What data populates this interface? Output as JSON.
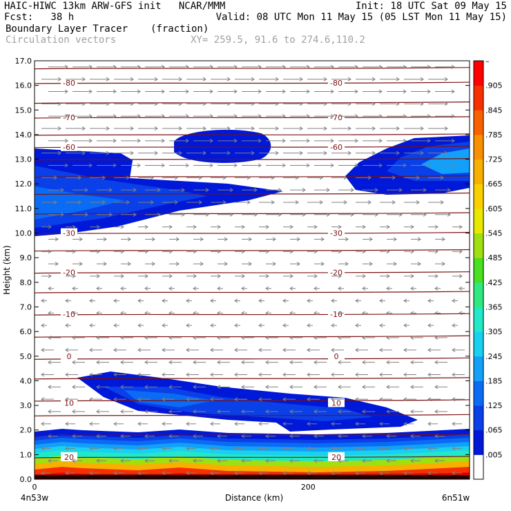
{
  "header": {
    "line1_left": "HAIC-HIWC 13km ARW-GFS init   NCAR/MMM",
    "line1_right": "Init: 18 UTC Sat 09 May 15",
    "line2_left": "Fcst:   38 h",
    "line2_right": "Valid: 08 UTC Mon 11 May 15 (05 LST Mon 11 May 15)",
    "field_name": "Boundary Layer Tracer",
    "field_unit": "(fraction)",
    "overlay_name": "Circulation vectors",
    "xy_label": "XY= 259.5, 91.6 to 274.6,110.2"
  },
  "colors": {
    "contour_line": "#7a1010",
    "vector": "#808080"
  },
  "chart_data": {
    "type": "heatmap",
    "title": "Boundary Layer Tracer",
    "ylabel": "Height (km)",
    "xlabel": "Distance (km)",
    "ylim": [
      0,
      17
    ],
    "xlim": [
      0,
      318
    ],
    "y_ticks": [
      "0.0",
      "1.0",
      "2.0",
      "3.0",
      "4.0",
      "5.0",
      "6.0",
      "7.0",
      "8.0",
      "9.0",
      "10.0",
      "11.0",
      "12.0",
      "13.0",
      "14.0",
      "15.0",
      "16.0",
      "17.0"
    ],
    "x_ticks": [
      {
        "value": 0,
        "label": "0"
      },
      {
        "value": 200,
        "label": "200"
      }
    ],
    "x_endpoints": {
      "left": "4n53w",
      "right": "6n51w"
    },
    "colorbar": {
      "labels": [
        ".005",
        ".065",
        ".125",
        ".185",
        ".245",
        ".305",
        ".365",
        ".425",
        ".485",
        ".545",
        ".605",
        ".665",
        ".725",
        ".785",
        ".845",
        ".905"
      ],
      "colors": [
        "#ffffff",
        "#0018d8",
        "#0a40e8",
        "#0a6cf4",
        "#12a0f8",
        "#1ad0f0",
        "#20e8c8",
        "#30e880",
        "#48e020",
        "#a0e010",
        "#e8e800",
        "#f8d000",
        "#f8b000",
        "#f89000",
        "#f86000",
        "#f83000",
        "#ff0000"
      ],
      "top_label": "–"
    },
    "temperature_contours": [
      {
        "label": "-80",
        "height": 16.1
      },
      {
        "label": "-70",
        "height": 14.7
      },
      {
        "label": "-60",
        "height": 13.5
      },
      {
        "label": "-30",
        "height": 10.0
      },
      {
        "label": "-20",
        "height": 8.4
      },
      {
        "label": "-10",
        "height": 6.7
      },
      {
        "label": "0",
        "height": 5.0
      },
      {
        "label": "10",
        "height": 3.1
      },
      {
        "label": "20",
        "height": 0.9
      }
    ],
    "contour_heights": [
      0.2,
      0.9,
      1.8,
      2.6,
      3.2,
      4.1,
      4.9,
      5.8,
      6.7,
      7.6,
      8.4,
      9.3,
      10.0,
      10.8,
      11.6,
      12.3,
      13.0,
      13.5,
      14.0,
      14.7,
      15.3,
      16.1,
      16.7
    ]
  }
}
